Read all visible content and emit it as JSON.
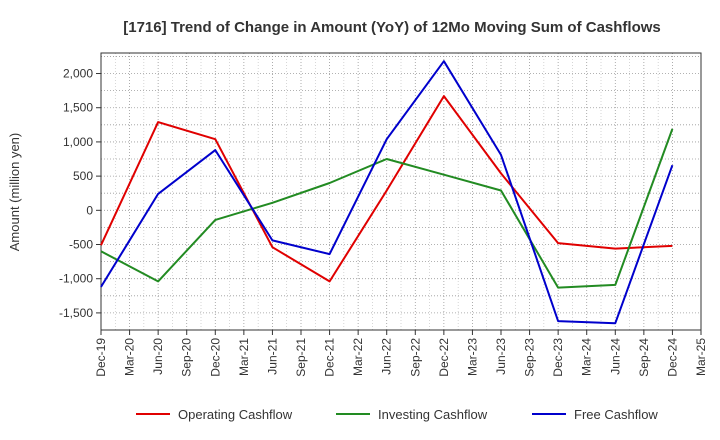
{
  "chart_data": {
    "type": "line",
    "title": "[1716]  Trend of Change in Amount (YoY) of 12Mo Moving Sum of Cashflows",
    "ylabel": "Amount (million yen)",
    "xlabel": "",
    "ylim": [
      -1750,
      2300
    ],
    "yticks": [
      -1500,
      -1000,
      -500,
      0,
      500,
      1000,
      1500,
      2000
    ],
    "ytick_labels": [
      "-1,500",
      "-1,000",
      "-500",
      "0",
      "500",
      "1,000",
      "1,500",
      "2,000"
    ],
    "categories": [
      "Dec-19",
      "Mar-20",
      "Jun-20",
      "Sep-20",
      "Dec-20",
      "Mar-21",
      "Jun-21",
      "Sep-21",
      "Dec-21",
      "Mar-22",
      "Jun-22",
      "Sep-22",
      "Dec-22",
      "Mar-23",
      "Jun-23",
      "Sep-23",
      "Dec-23",
      "Mar-24",
      "Jun-24",
      "Sep-24",
      "Dec-24",
      "Mar-25"
    ],
    "grid": true,
    "legend_position": "bottom",
    "series": [
      {
        "name": "Operating Cashflow",
        "color": "#e00000",
        "values": [
          -510,
          null,
          1290,
          null,
          1040,
          null,
          -540,
          null,
          -1040,
          null,
          290,
          null,
          1670,
          null,
          540,
          null,
          -480,
          null,
          -560,
          null,
          -520,
          null
        ]
      },
      {
        "name": "Investing Cashflow",
        "color": "#228b22",
        "values": [
          -600,
          null,
          -1040,
          null,
          -140,
          null,
          110,
          null,
          400,
          null,
          750,
          null,
          520,
          null,
          290,
          null,
          -1130,
          null,
          -1090,
          null,
          1190,
          null
        ]
      },
      {
        "name": "Free Cashflow",
        "color": "#0000cc",
        "values": [
          -1120,
          null,
          240,
          null,
          880,
          null,
          -440,
          null,
          -640,
          null,
          1040,
          null,
          2180,
          null,
          810,
          null,
          -1620,
          null,
          -1650,
          null,
          660,
          null
        ]
      }
    ]
  }
}
